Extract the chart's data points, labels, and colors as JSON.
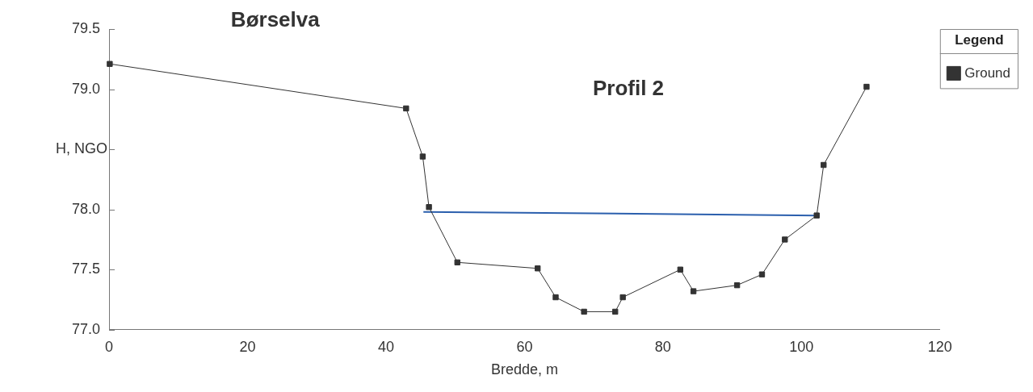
{
  "chart_data": {
    "type": "line",
    "title": "Børselva",
    "subtitle": "Profil 2",
    "xlabel": "Bredde, m",
    "ylabel": "H, NGO",
    "legend_title": "Legend",
    "legend": "top right",
    "grid": false,
    "xlim": [
      0,
      120
    ],
    "xticks": [
      0,
      20,
      40,
      60,
      80,
      100,
      120
    ],
    "ylim": [
      77.0,
      79.5
    ],
    "yticks": [
      {
        "value": 77.0,
        "label": "77.0"
      },
      77.5,
      {
        "value": 78.0,
        "label": "78.0"
      },
      {
        "value": 78.5,
        "label": null
      },
      {
        "value": 79.0,
        "label": "79.0"
      },
      79.5
    ],
    "series": [
      {
        "name": "Ground",
        "type": "line",
        "color": "#333333",
        "marker": "square",
        "line_style": "solid",
        "x": [
          0.1,
          42.9,
          45.3,
          46.2,
          50.3,
          61.9,
          64.5,
          68.6,
          73.1,
          74.2,
          82.5,
          84.4,
          90.7,
          94.3,
          97.6,
          102.2,
          103.2,
          109.4
        ],
        "values": [
          79.21,
          78.84,
          78.44,
          78.02,
          77.56,
          77.51,
          77.27,
          77.15,
          77.15,
          77.27,
          77.5,
          77.32,
          77.37,
          77.46,
          77.75,
          77.95,
          78.37,
          79.02
        ]
      },
      {
        "type": "line",
        "color": "#2b5fad",
        "marker": "none",
        "line_style": "solid",
        "x": [
          45.4,
          102.2
        ],
        "values": [
          77.98,
          77.95
        ]
      }
    ]
  }
}
